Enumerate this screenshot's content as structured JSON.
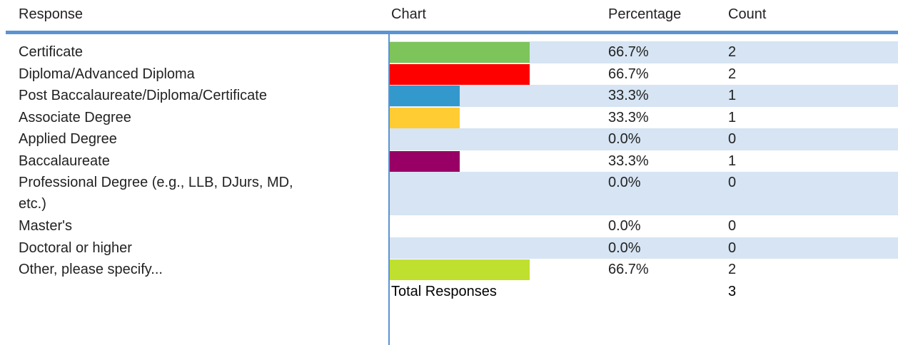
{
  "chart_data": {
    "type": "bar",
    "headers": [
      "Response",
      "Chart",
      "Percentage",
      "Count"
    ],
    "rows": [
      {
        "response": "Certificate",
        "percentage": 66.7,
        "percentage_label": "66.7%",
        "count": 2,
        "color": "#7dc45a"
      },
      {
        "response": "Diploma/Advanced Diploma",
        "percentage": 66.7,
        "percentage_label": "66.7%",
        "count": 2,
        "color": "#ff0000"
      },
      {
        "response": "Post Baccalaureate/Diploma/Certificate",
        "percentage": 33.3,
        "percentage_label": "33.3%",
        "count": 1,
        "color": "#3399cc"
      },
      {
        "response": "Associate Degree",
        "percentage": 33.3,
        "percentage_label": "33.3%",
        "count": 1,
        "color": "#ffcc33"
      },
      {
        "response": "Applied Degree",
        "percentage": 0,
        "percentage_label": "0.0%",
        "count": 0
      },
      {
        "response": "Baccalaureate",
        "percentage": 33.3,
        "percentage_label": "33.3%",
        "count": 1,
        "color": "#990066"
      },
      {
        "response": "Professional Degree (e.g., LLB, DJurs, MD, etc.)",
        "percentage": 0,
        "percentage_label": "0.0%",
        "count": 0
      },
      {
        "response": "Master's",
        "percentage": 0,
        "percentage_label": "0.0%",
        "count": 0
      },
      {
        "response": "Doctoral or higher",
        "percentage": 0,
        "percentage_label": "0.0%",
        "count": 0
      },
      {
        "response": "Other, please specify...",
        "percentage": 66.7,
        "percentage_label": "66.7%",
        "count": 2,
        "color": "#bfe02e"
      }
    ],
    "total_label": "Total Responses",
    "total": 3
  }
}
